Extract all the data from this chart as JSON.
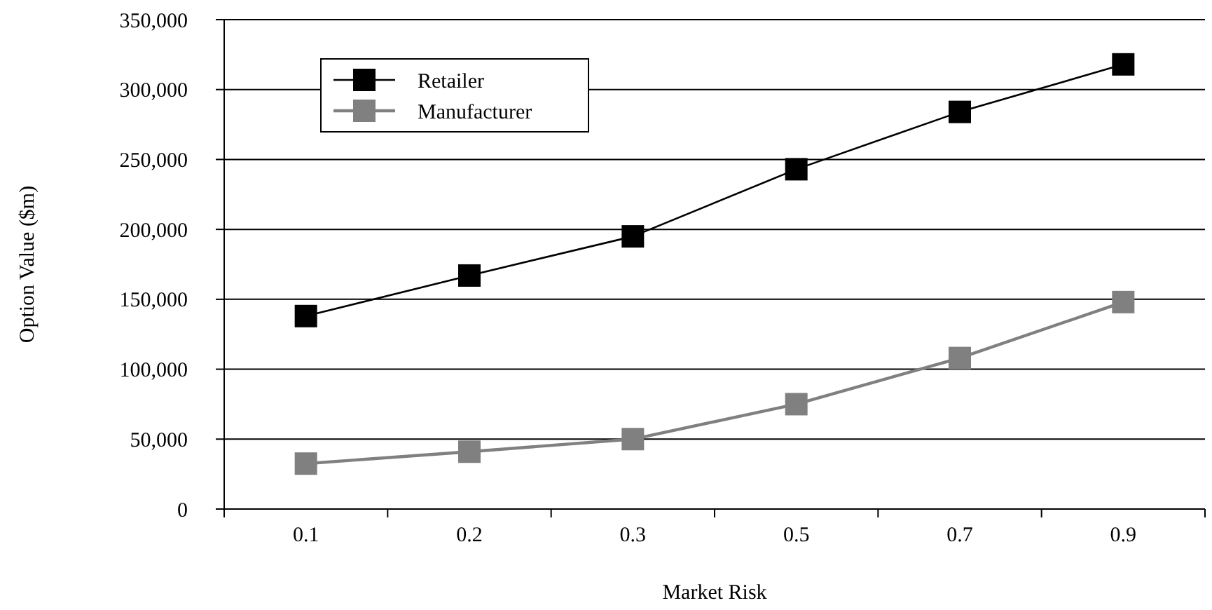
{
  "chart_data": {
    "type": "line",
    "xlabel": "Market Risk",
    "ylabel": "Option Value  ($m)",
    "categories": [
      "0.1",
      "0.2",
      "0.3",
      "0.5",
      "0.7",
      "0.9"
    ],
    "series": [
      {
        "name": "Retailer",
        "color": "#000000",
        "values": [
          138000,
          167000,
          195000,
          243000,
          284000,
          318000
        ]
      },
      {
        "name": "Manufacturer",
        "color": "#808080",
        "values": [
          32500,
          41000,
          50000,
          75000,
          108000,
          148000
        ]
      }
    ],
    "ylim": [
      0,
      350000
    ],
    "yticks": [
      {
        "value": 0,
        "label": "0"
      },
      {
        "value": 50000,
        "label": "50,000"
      },
      {
        "value": 100000,
        "label": "100,000"
      },
      {
        "value": 150000,
        "label": "150,000"
      },
      {
        "value": 200000,
        "label": "200,000"
      },
      {
        "value": 250000,
        "label": "250,000"
      },
      {
        "value": 300000,
        "label": "300,000"
      },
      {
        "value": 350000,
        "label": "350,000"
      }
    ],
    "grid": "y",
    "legend": "top left",
    "marker": "square",
    "line_style": "solid"
  }
}
